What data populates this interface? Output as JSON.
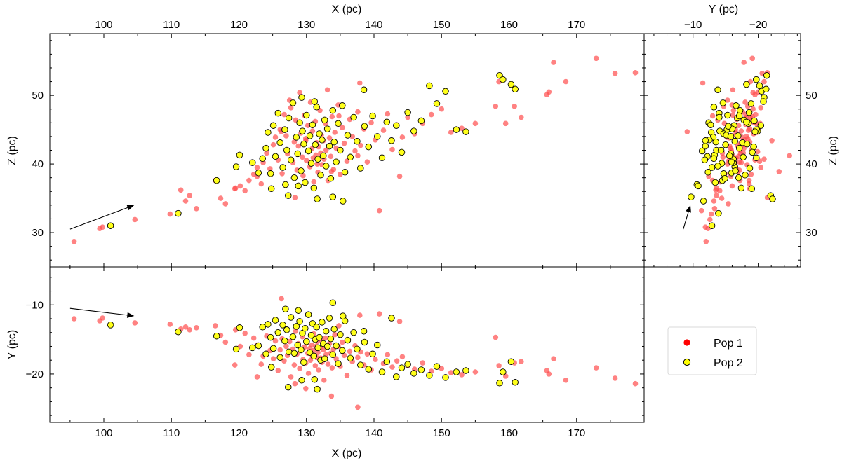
{
  "chart_data": {
    "type": "scatter",
    "legend": {
      "placement": "right",
      "entries": [
        {
          "label": "Pop 1",
          "color": "#ff0000"
        },
        {
          "label": "Pop 2",
          "color": "#ffff00"
        }
      ]
    },
    "colors": {
      "pop1": "#ff4d4d",
      "pop2_fill": "#ffff1a",
      "pop2_edge": "#000000"
    },
    "panels": [
      {
        "id": "xz",
        "xlabel": "X (pc)",
        "ylabel": "Z (pc)",
        "xlim": [
          92,
          180
        ],
        "ylim": [
          25,
          59
        ],
        "xticks": [
          100,
          110,
          120,
          130,
          140,
          150,
          160,
          170
        ],
        "yticks": [
          30,
          40,
          50
        ],
        "arrow": {
          "from": [
            95,
            30.5
          ],
          "to": [
            104.5,
            34
          ]
        }
      },
      {
        "id": "xy",
        "xlabel": "X (pc)",
        "ylabel": "Y (pc)",
        "xlim": [
          92,
          180
        ],
        "ylim": [
          -27,
          -4.5
        ],
        "xticks": [
          100,
          110,
          120,
          130,
          140,
          150,
          160,
          170
        ],
        "yticks": [
          -10,
          -20
        ],
        "arrow": {
          "from": [
            95,
            -10.5
          ],
          "to": [
            104.5,
            -11.6
          ]
        }
      },
      {
        "id": "yz",
        "xlabel": "Y (pc)",
        "ylabel": "Z (pc)",
        "xlim": [
          -2.5,
          -26.5
        ],
        "ylim": [
          25,
          59
        ],
        "xticks": [
          -10,
          -20
        ],
        "yticks": [
          30,
          40,
          50
        ],
        "arrow": {
          "from": [
            -8.5,
            30.5
          ],
          "to": [
            -9.6,
            34
          ]
        }
      }
    ],
    "series": [
      {
        "name": "Pop 1",
        "points": [
          [
            95.6,
            -12.0,
            28.7
          ],
          [
            99.4,
            -12.3,
            30.6
          ],
          [
            99.8,
            -11.9,
            30.8
          ],
          [
            104.6,
            -12.6,
            31.9
          ],
          [
            109.8,
            -12.8,
            32.7
          ],
          [
            111.4,
            -13.5,
            36.2
          ],
          [
            112.1,
            -13.2,
            34.6
          ],
          [
            112.7,
            -13.6,
            35.4
          ],
          [
            113.7,
            -13.3,
            33.5
          ],
          [
            116.5,
            -13.0,
            37.6
          ],
          [
            117.3,
            -14.4,
            35.0
          ],
          [
            118.0,
            -15.4,
            34.2
          ],
          [
            119.5,
            -13.6,
            36.5
          ],
          [
            120.2,
            -16.0,
            36.8
          ],
          [
            120.9,
            -14.1,
            36.1
          ],
          [
            121.5,
            -17.2,
            37.6
          ],
          [
            122.2,
            -14.8,
            38.5
          ],
          [
            122.7,
            -15.8,
            38.2
          ],
          [
            123.3,
            -18.6,
            37.1
          ],
          [
            123.6,
            -17.4,
            40.2
          ],
          [
            124.1,
            -14.5,
            41.6
          ],
          [
            124.6,
            -16.6,
            39.3
          ],
          [
            125.1,
            -17.8,
            42.8
          ],
          [
            125.4,
            -15.2,
            43.9
          ],
          [
            125.8,
            -19.5,
            40.6
          ],
          [
            126.1,
            -16.5,
            45.0
          ],
          [
            126.4,
            -14.9,
            38.6
          ],
          [
            126.7,
            -18.1,
            47.2
          ],
          [
            127.0,
            -16.0,
            44.1
          ],
          [
            127.2,
            -17.3,
            41.5
          ],
          [
            127.5,
            -15.3,
            49.3
          ],
          [
            127.7,
            -20.4,
            48.2
          ],
          [
            128.0,
            -16.4,
            40.2
          ],
          [
            128.2,
            -18.7,
            43.2
          ],
          [
            128.4,
            -13.8,
            46.4
          ],
          [
            128.6,
            -17.1,
            39.1
          ],
          [
            128.8,
            -15.6,
            42.6
          ],
          [
            129.0,
            -19.2,
            50.4
          ],
          [
            129.2,
            -16.6,
            44.5
          ],
          [
            129.4,
            -14.6,
            41.0
          ],
          [
            129.5,
            -17.9,
            38.3
          ],
          [
            129.7,
            -16.1,
            47.1
          ],
          [
            129.9,
            -18.4,
            43.7
          ],
          [
            130.0,
            -15.5,
            40.5
          ],
          [
            130.2,
            -17.0,
            45.6
          ],
          [
            130.3,
            -19.9,
            41.8
          ],
          [
            130.5,
            -16.3,
            39.6
          ],
          [
            130.6,
            -18.0,
            49.0
          ],
          [
            130.8,
            -15.8,
            42.2
          ],
          [
            130.9,
            -17.4,
            44.8
          ],
          [
            131.0,
            -16.6,
            40.9
          ],
          [
            131.1,
            -14.2,
            37.4
          ],
          [
            131.3,
            -18.8,
            46.2
          ],
          [
            131.4,
            -16.0,
            41.3
          ],
          [
            131.5,
            -17.6,
            43.1
          ],
          [
            131.6,
            -15.3,
            40.0
          ],
          [
            131.7,
            -16.9,
            38.8
          ],
          [
            131.8,
            -19.4,
            42.5
          ],
          [
            132.0,
            -16.2,
            47.8
          ],
          [
            132.1,
            -17.7,
            41.6
          ],
          [
            132.2,
            -15.1,
            44.2
          ],
          [
            132.3,
            -18.3,
            39.9
          ],
          [
            132.5,
            -16.5,
            43.4
          ],
          [
            132.6,
            -20.9,
            40.7
          ],
          [
            132.8,
            -14.8,
            45.9
          ],
          [
            132.9,
            -17.2,
            42.0
          ],
          [
            133.1,
            -16.1,
            50.8
          ],
          [
            133.2,
            -18.6,
            37.6
          ],
          [
            133.4,
            -15.6,
            43.8
          ],
          [
            133.6,
            -17.0,
            41.1
          ],
          [
            133.8,
            -19.1,
            46.9
          ],
          [
            134.0,
            -16.4,
            39.2
          ],
          [
            134.2,
            -14.3,
            44.6
          ],
          [
            134.4,
            -17.8,
            42.3
          ],
          [
            134.7,
            -16.0,
            48.6
          ],
          [
            135.0,
            -18.9,
            38.5
          ],
          [
            135.3,
            -15.4,
            45.3
          ],
          [
            135.6,
            -17.3,
            43.0
          ],
          [
            136.0,
            -20.2,
            40.4
          ],
          [
            136.4,
            -16.7,
            46.5
          ],
          [
            136.8,
            -18.2,
            44.0
          ],
          [
            137.2,
            -15.9,
            41.9
          ],
          [
            137.6,
            -17.6,
            47.6
          ],
          [
            138.0,
            -16.8,
            42.7
          ],
          [
            138.5,
            -18.7,
            45.1
          ],
          [
            139.0,
            -17.1,
            40.3
          ],
          [
            139.6,
            -19.4,
            46.0
          ],
          [
            140.2,
            -17.9,
            43.5
          ],
          [
            140.8,
            -11.3,
            33.2
          ],
          [
            141.4,
            -18.5,
            44.9
          ],
          [
            142.0,
            -17.2,
            47.3
          ],
          [
            142.7,
            -19.0,
            42.1
          ],
          [
            143.4,
            -18.1,
            45.7
          ],
          [
            144.2,
            -17.5,
            43.9
          ],
          [
            145.0,
            -18.8,
            46.8
          ],
          [
            146.0,
            -19.3,
            44.4
          ],
          [
            147.2,
            -18.4,
            45.9
          ],
          [
            148.5,
            -19.6,
            47.2
          ],
          [
            150.0,
            -19.2,
            48.0
          ],
          [
            151.4,
            -19.8,
            44.6
          ],
          [
            153.0,
            -20.1,
            45.2
          ],
          [
            155.0,
            -19.7,
            45.9
          ],
          [
            158.0,
            -14.7,
            48.4
          ],
          [
            158.5,
            -18.8,
            52.0
          ],
          [
            159.5,
            -20.3,
            45.9
          ],
          [
            160.8,
            -18.4,
            48.4
          ],
          [
            161.8,
            -18.2,
            46.8
          ],
          [
            165.6,
            -19.5,
            50.1
          ],
          [
            165.9,
            -20.0,
            50.5
          ],
          [
            166.6,
            -17.8,
            54.8
          ],
          [
            168.4,
            -20.9,
            52.0
          ],
          [
            172.9,
            -19.1,
            55.4
          ],
          [
            175.7,
            -20.6,
            53.2
          ],
          [
            178.7,
            -21.4,
            53.3
          ],
          [
            137.6,
            -24.8,
            41.2
          ],
          [
            133.7,
            -23.2,
            38.9
          ],
          [
            126.3,
            -9.1,
            44.7
          ],
          [
            119.4,
            -18.7,
            36.4
          ],
          [
            129.9,
            -22.1,
            43.4
          ],
          [
            134.8,
            -13.0,
            47.0
          ],
          [
            137.9,
            -11.5,
            51.8
          ],
          [
            122.7,
            -20.4,
            39.5
          ],
          [
            143.8,
            -12.4,
            38.2
          ],
          [
            128.3,
            -21.4,
            35.1
          ]
        ]
      },
      {
        "name": "Pop 2",
        "points": [
          [
            101.0,
            -12.9,
            31.0
          ],
          [
            111.0,
            -13.9,
            32.8
          ],
          [
            116.7,
            -14.5,
            37.6
          ],
          [
            119.6,
            -16.4,
            39.6
          ],
          [
            120.1,
            -13.3,
            41.3
          ],
          [
            122.0,
            -16.2,
            40.2
          ],
          [
            122.9,
            -15.9,
            38.7
          ],
          [
            123.5,
            -13.2,
            40.8
          ],
          [
            124.0,
            -17.1,
            42.3
          ],
          [
            124.3,
            -12.8,
            44.6
          ],
          [
            124.7,
            -14.7,
            38.6
          ],
          [
            125.1,
            -16.3,
            45.6
          ],
          [
            125.4,
            -12.2,
            41.1
          ],
          [
            125.8,
            -14.0,
            47.4
          ],
          [
            126.1,
            -17.6,
            43.1
          ],
          [
            126.5,
            -12.9,
            39.5
          ],
          [
            126.8,
            -15.2,
            45.0
          ],
          [
            127.1,
            -13.6,
            42.0
          ],
          [
            127.4,
            -16.8,
            46.7
          ],
          [
            127.7,
            -11.8,
            40.6
          ],
          [
            128.0,
            -14.6,
            48.9
          ],
          [
            128.2,
            -17.0,
            38.0
          ],
          [
            128.5,
            -13.1,
            43.9
          ],
          [
            128.7,
            -15.8,
            41.5
          ],
          [
            129.0,
            -12.4,
            46.0
          ],
          [
            129.2,
            -16.5,
            39.0
          ],
          [
            129.4,
            -14.1,
            44.8
          ],
          [
            129.6,
            -18.3,
            42.9
          ],
          [
            129.8,
            -13.4,
            37.3
          ],
          [
            130.0,
            -15.3,
            47.1
          ],
          [
            130.3,
            -11.4,
            41.9
          ],
          [
            130.5,
            -16.9,
            44.1
          ],
          [
            130.7,
            -14.4,
            40.1
          ],
          [
            130.9,
            -12.7,
            45.7
          ],
          [
            131.1,
            -17.4,
            36.5
          ],
          [
            131.3,
            -15.0,
            42.8
          ],
          [
            131.5,
            -13.2,
            48.3
          ],
          [
            131.7,
            -16.2,
            40.7
          ],
          [
            131.9,
            -14.7,
            44.4
          ],
          [
            132.1,
            -18.0,
            38.4
          ],
          [
            132.3,
            -12.5,
            43.5
          ],
          [
            132.5,
            -15.6,
            41.2
          ],
          [
            132.7,
            -17.8,
            46.4
          ],
          [
            132.9,
            -13.8,
            39.7
          ],
          [
            133.1,
            -16.0,
            45.1
          ],
          [
            133.4,
            -11.9,
            42.6
          ],
          [
            133.6,
            -14.9,
            37.9
          ],
          [
            133.9,
            -17.2,
            47.8
          ],
          [
            134.1,
            -13.5,
            43.2
          ],
          [
            134.4,
            -15.9,
            40.3
          ],
          [
            134.7,
            -18.5,
            45.9
          ],
          [
            135.0,
            -14.3,
            42.0
          ],
          [
            135.3,
            -16.6,
            48.5
          ],
          [
            135.7,
            -12.3,
            38.8
          ],
          [
            136.1,
            -15.1,
            44.2
          ],
          [
            136.5,
            -17.7,
            41.0
          ],
          [
            137.0,
            -14.0,
            46.8
          ],
          [
            137.5,
            -16.4,
            43.3
          ],
          [
            138.0,
            -18.7,
            39.4
          ],
          [
            138.6,
            -15.4,
            45.5
          ],
          [
            139.2,
            -19.3,
            42.5
          ],
          [
            139.8,
            -17.1,
            47.0
          ],
          [
            140.5,
            -15.8,
            44.0
          ],
          [
            141.2,
            -19.7,
            40.9
          ],
          [
            141.9,
            -18.2,
            46.1
          ],
          [
            142.6,
            -11.9,
            43.4
          ],
          [
            143.3,
            -20.4,
            45.6
          ],
          [
            144.1,
            -19.1,
            41.7
          ],
          [
            145.0,
            -18.6,
            47.5
          ],
          [
            145.9,
            -19.9,
            44.8
          ],
          [
            147.0,
            -19.4,
            46.3
          ],
          [
            148.2,
            -20.2,
            51.4
          ],
          [
            149.3,
            -18.9,
            48.8
          ],
          [
            150.6,
            -20.5,
            50.6
          ],
          [
            152.2,
            -19.7,
            45.0
          ],
          [
            153.6,
            -19.5,
            44.7
          ],
          [
            158.6,
            -21.3,
            52.9
          ],
          [
            159.1,
            -19.7,
            52.3
          ],
          [
            160.3,
            -18.2,
            51.6
          ],
          [
            160.9,
            -21.2,
            50.9
          ],
          [
            127.3,
            -21.9,
            35.4
          ],
          [
            131.6,
            -22.2,
            34.9
          ],
          [
            133.9,
            -9.7,
            35.2
          ],
          [
            126.9,
            -10.6,
            37.0
          ],
          [
            129.3,
            -20.9,
            49.7
          ],
          [
            138.5,
            -13.8,
            50.8
          ],
          [
            124.8,
            -19.0,
            36.4
          ],
          [
            135.4,
            -11.6,
            34.6
          ],
          [
            131.2,
            -20.8,
            49.1
          ],
          [
            128.8,
            -10.8,
            36.8
          ]
        ]
      }
    ]
  }
}
